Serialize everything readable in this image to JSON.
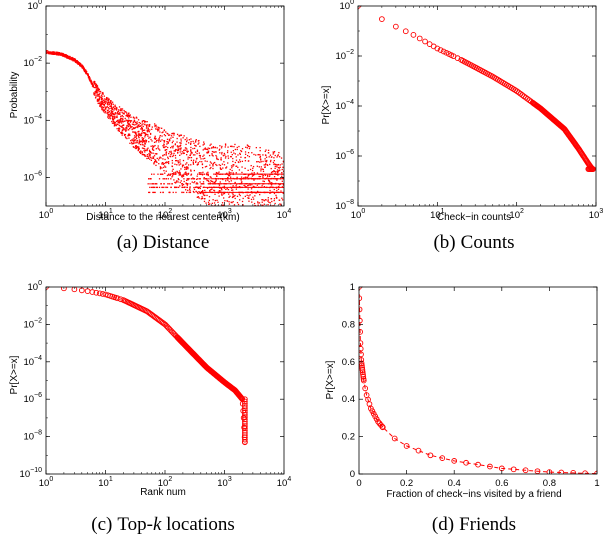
{
  "chart_data": [
    {
      "id": "a",
      "type": "scatter",
      "caption_prefix": "(a)",
      "caption_text": "Distance",
      "xlabel": "Distance to the nearest center(km)",
      "ylabel": "Probability",
      "xscale": "log",
      "yscale": "log",
      "xlim": [
        1,
        10000
      ],
      "ylim": [
        1e-07,
        1
      ],
      "xticks": [
        1,
        10,
        100,
        1000,
        10000
      ],
      "xtick_labels": [
        {
          "base": "10",
          "exp": "0"
        },
        {
          "base": "10",
          "exp": "1"
        },
        {
          "base": "10",
          "exp": "2"
        },
        {
          "base": "10",
          "exp": "3"
        },
        {
          "base": "10",
          "exp": "4"
        }
      ],
      "yticks": [
        1e-06,
        0.0001,
        0.01,
        1
      ],
      "ytick_labels": [
        {
          "base": "10",
          "exp": "−6"
        },
        {
          "base": "10",
          "exp": "−4"
        },
        {
          "base": "10",
          "exp": "−2"
        },
        {
          "base": "10",
          "exp": "0"
        }
      ],
      "marker": "dot",
      "color": "#ff0000",
      "points": [
        [
          1,
          0.025
        ],
        [
          1.5,
          0.022
        ],
        [
          2,
          0.019
        ],
        [
          3,
          0.013
        ],
        [
          4,
          0.008
        ],
        [
          5,
          0.004
        ],
        [
          6,
          0.0018
        ],
        [
          7,
          0.001
        ],
        [
          8,
          0.0006
        ],
        [
          10,
          0.00035
        ],
        [
          13,
          0.00018
        ],
        [
          20,
          8e-05
        ],
        [
          30,
          4e-05
        ],
        [
          50,
          2e-05
        ],
        [
          80,
          1.2e-05
        ],
        [
          120,
          6e-06
        ],
        [
          200,
          3.5e-06
        ],
        [
          300,
          2.5e-06
        ],
        [
          500,
          1.5e-06
        ],
        [
          800,
          1e-06
        ],
        [
          1000,
          9e-07
        ],
        [
          2000,
          6e-07
        ],
        [
          5000,
          4e-07
        ],
        [
          10000,
          3e-07
        ]
      ],
      "floor_levels": [
        3e-07,
        4.5e-07,
        6e-07,
        9e-07,
        1.3e-06
      ]
    },
    {
      "id": "b",
      "type": "scatter",
      "caption_prefix": "(b)",
      "caption_text": "Counts",
      "xlabel": "Check−in counts",
      "ylabel": "Pr[X>=x]",
      "xscale": "log",
      "yscale": "log",
      "xlim": [
        1,
        1000
      ],
      "ylim": [
        1e-08,
        1
      ],
      "xticks": [
        1,
        10,
        100,
        1000
      ],
      "xtick_labels": [
        {
          "base": "10",
          "exp": "0"
        },
        {
          "base": "10",
          "exp": "1"
        },
        {
          "base": "10",
          "exp": "2"
        },
        {
          "base": "10",
          "exp": "3"
        }
      ],
      "yticks": [
        1e-08,
        1e-06,
        0.0001,
        0.01,
        1
      ],
      "ytick_labels": [
        {
          "base": "10",
          "exp": "−8"
        },
        {
          "base": "10",
          "exp": "−6"
        },
        {
          "base": "10",
          "exp": "−4"
        },
        {
          "base": "10",
          "exp": "−2"
        },
        {
          "base": "10",
          "exp": "0"
        }
      ],
      "marker": "circle",
      "color": "#ff0000",
      "points": [
        [
          1,
          1
        ],
        [
          2,
          0.3
        ],
        [
          3,
          0.15
        ],
        [
          5,
          0.07
        ],
        [
          10,
          0.02
        ],
        [
          20,
          0.007
        ],
        [
          50,
          0.0015
        ],
        [
          100,
          0.0004
        ],
        [
          200,
          8e-05
        ],
        [
          400,
          1.2e-05
        ],
        [
          600,
          2e-06
        ],
        [
          800,
          5e-07
        ],
        [
          900,
          3e-07
        ]
      ]
    },
    {
      "id": "c",
      "type": "scatter",
      "caption_prefix": "(c)",
      "caption_text": "Top-",
      "caption_italic": "k",
      "caption_suffix": " locations",
      "xlabel": "Rank num",
      "ylabel": "Pr[X>=x]",
      "xscale": "log",
      "yscale": "log",
      "xlim": [
        1,
        10000
      ],
      "ylim": [
        1e-10,
        1
      ],
      "xticks": [
        1,
        10,
        100,
        1000,
        10000
      ],
      "xtick_labels": [
        {
          "base": "10",
          "exp": "0"
        },
        {
          "base": "10",
          "exp": "1"
        },
        {
          "base": "10",
          "exp": "2"
        },
        {
          "base": "10",
          "exp": "3"
        },
        {
          "base": "10",
          "exp": "4"
        }
      ],
      "yticks": [
        1e-10,
        1e-08,
        1e-06,
        0.0001,
        0.01,
        1
      ],
      "ytick_labels": [
        {
          "base": "10",
          "exp": "−10"
        },
        {
          "base": "10",
          "exp": "−8"
        },
        {
          "base": "10",
          "exp": "−6"
        },
        {
          "base": "10",
          "exp": "−4"
        },
        {
          "base": "10",
          "exp": "−2"
        },
        {
          "base": "10",
          "exp": "0"
        }
      ],
      "marker": "circle",
      "color": "#ff0000",
      "points": [
        [
          1,
          1
        ],
        [
          2,
          0.85
        ],
        [
          3,
          0.75
        ],
        [
          5,
          0.6
        ],
        [
          10,
          0.4
        ],
        [
          20,
          0.2
        ],
        [
          50,
          0.05
        ],
        [
          100,
          0.01
        ],
        [
          200,
          0.001
        ],
        [
          500,
          5e-05
        ],
        [
          1000,
          8e-06
        ],
        [
          1500,
          3e-06
        ],
        [
          2000,
          1e-06
        ],
        [
          2100,
          1e-07
        ],
        [
          2200,
          5e-09
        ]
      ]
    },
    {
      "id": "d",
      "type": "scatter",
      "caption_prefix": "(d)",
      "caption_text": "Friends",
      "xlabel": "Fraction of check−ins visited by a friend",
      "ylabel": "Pr[X>=x]",
      "xscale": "linear",
      "yscale": "linear",
      "xlim": [
        0,
        1
      ],
      "ylim": [
        0,
        1
      ],
      "xticks": [
        0,
        0.2,
        0.4,
        0.6,
        0.8,
        1
      ],
      "xtick_labels": [
        "0",
        "0.2",
        "0.4",
        "0.6",
        "0.8",
        "1"
      ],
      "yticks": [
        0,
        0.2,
        0.4,
        0.6,
        0.8,
        1
      ],
      "ytick_labels": [
        "0",
        "0.2",
        "0.4",
        "0.6",
        "0.8",
        "1"
      ],
      "marker": "circle",
      "line": "dashed",
      "color": "#ff0000",
      "points": [
        [
          0,
          1
        ],
        [
          0.003,
          0.85
        ],
        [
          0.006,
          0.7
        ],
        [
          0.01,
          0.6
        ],
        [
          0.02,
          0.5
        ],
        [
          0.03,
          0.43
        ],
        [
          0.05,
          0.35
        ],
        [
          0.08,
          0.28
        ],
        [
          0.1,
          0.25
        ],
        [
          0.15,
          0.19
        ],
        [
          0.2,
          0.15
        ],
        [
          0.3,
          0.1
        ],
        [
          0.4,
          0.07
        ],
        [
          0.5,
          0.05
        ],
        [
          0.6,
          0.03
        ],
        [
          0.7,
          0.02
        ],
        [
          0.8,
          0.01
        ],
        [
          1,
          0.002
        ]
      ]
    }
  ]
}
